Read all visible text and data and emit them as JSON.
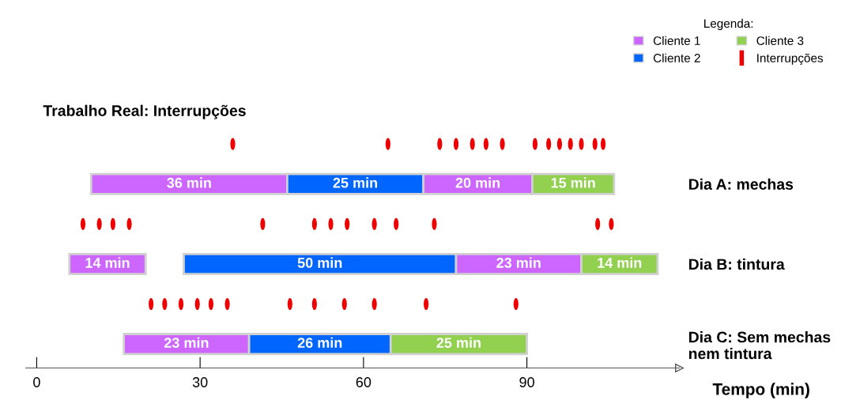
{
  "chart_data": {
    "type": "bar",
    "orientation": "horizontal",
    "title": "Trabalho Real: Interrupções",
    "xlabel": "Tempo (min)",
    "legend_title": "Legenda:",
    "legend": "top right",
    "categories": [
      null,
      "Dia A: mechas",
      null,
      "Dia B: tintura",
      null,
      "Dia C: Sem mechas\nnem tintura"
    ],
    "xlim": [
      -2,
      118
    ],
    "xticks": [
      0,
      30,
      60,
      90
    ],
    "grid": false,
    "series": [
      {
        "name": "Cliente 1",
        "color": "#cc66ff",
        "values": [
          null,
          36,
          null,
          14,
          null,
          23
        ],
        "base": [
          null,
          10,
          null,
          6,
          null,
          16
        ],
        "value_labels": [
          null,
          "36 min",
          null,
          "14 min",
          null,
          "23 min"
        ]
      },
      {
        "name": "Cliente 2",
        "color": "#0066ff",
        "values": [
          null,
          25,
          null,
          50,
          null,
          26
        ],
        "base": [
          null,
          46,
          null,
          27,
          null,
          39
        ],
        "value_labels": [
          null,
          "25 min",
          null,
          "50 min",
          null,
          "26 min"
        ]
      },
      {
        "color": "#cc66ff",
        "values": [
          null,
          20,
          null,
          23,
          null,
          null
        ],
        "base": [
          null,
          71,
          null,
          77,
          null,
          null
        ],
        "value_labels": [
          null,
          "20 min",
          null,
          "23 min",
          null,
          null
        ]
      },
      {
        "name": "Cliente 3",
        "color": "#92d050",
        "values": [
          null,
          15,
          null,
          14,
          null,
          25
        ],
        "base": [
          null,
          91,
          null,
          100,
          null,
          65
        ],
        "value_labels": [
          null,
          "15 min",
          null,
          "14 min",
          null,
          "25 min"
        ]
      },
      {
        "name": "Interrupções",
        "type": "scatter",
        "color": "#ee0000",
        "values": [
          36,
          null,
          8.5,
          null,
          21,
          null
        ]
      },
      {
        "type": "scatter",
        "color": "#ee0000",
        "values": [
          64.5,
          null,
          11.5,
          null,
          23.5,
          null
        ]
      },
      {
        "type": "scatter",
        "color": "#ee0000",
        "values": [
          74,
          null,
          14,
          null,
          26.5,
          null
        ]
      },
      {
        "type": "scatter",
        "color": "#ee0000",
        "values": [
          77,
          null,
          17,
          null,
          29.5,
          null
        ]
      },
      {
        "type": "scatter",
        "color": "#ee0000",
        "values": [
          80,
          null,
          41.5,
          null,
          32,
          null
        ]
      },
      {
        "type": "scatter",
        "color": "#ee0000",
        "values": [
          82.5,
          null,
          51,
          null,
          35,
          null
        ]
      },
      {
        "type": "scatter",
        "color": "#ee0000",
        "values": [
          85.5,
          null,
          54,
          null,
          46.5,
          null
        ]
      },
      {
        "type": "scatter",
        "color": "#ee0000",
        "values": [
          91.5,
          null,
          57,
          null,
          51,
          null
        ]
      },
      {
        "type": "scatter",
        "color": "#ee0000",
        "values": [
          94,
          null,
          62,
          null,
          56.5,
          null
        ]
      },
      {
        "type": "scatter",
        "color": "#ee0000",
        "values": [
          96,
          null,
          66,
          null,
          62,
          null
        ]
      },
      {
        "type": "scatter",
        "color": "#ee0000",
        "values": [
          98,
          null,
          73,
          null,
          71.5,
          null
        ]
      },
      {
        "type": "scatter",
        "color": "#ee0000",
        "values": [
          100,
          null,
          103,
          null,
          88,
          null
        ]
      },
      {
        "type": "scatter",
        "color": "#ee0000",
        "values": [
          102.5,
          null,
          105.5,
          null,
          null,
          null
        ]
      },
      {
        "type": "scatter",
        "color": "#ee0000",
        "values": [
          104,
          null,
          null,
          null,
          null,
          null
        ]
      }
    ]
  }
}
